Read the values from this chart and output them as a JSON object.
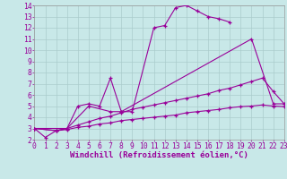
{
  "background_color": "#c8e8e8",
  "grid_color": "#aacccc",
  "line_color": "#990099",
  "xlabel": "Windchill (Refroidissement éolien,°C)",
  "xlabel_fontsize": 6.5,
  "tick_fontsize": 5.8,
  "xlim": [
    0,
    23
  ],
  "ylim": [
    2,
    14
  ],
  "xtick_vals": [
    0,
    1,
    2,
    3,
    4,
    5,
    6,
    7,
    8,
    9,
    10,
    11,
    12,
    13,
    14,
    15,
    16,
    17,
    18,
    19,
    20,
    21,
    22,
    23
  ],
  "ytick_vals": [
    2,
    3,
    4,
    5,
    6,
    7,
    8,
    9,
    10,
    11,
    12,
    13,
    14
  ],
  "series": [
    {
      "x": [
        0,
        1,
        2,
        3,
        4,
        5,
        6,
        7,
        8,
        9,
        11,
        12,
        13,
        14,
        15,
        16,
        17,
        18
      ],
      "y": [
        3,
        2.2,
        2.8,
        3.0,
        5.0,
        5.2,
        5.0,
        7.5,
        4.5,
        4.5,
        12.0,
        12.2,
        13.8,
        14.0,
        13.5,
        13.0,
        12.8,
        12.5
      ]
    },
    {
      "x": [
        0,
        3,
        5,
        7,
        8,
        20,
        22,
        23
      ],
      "y": [
        3,
        3.0,
        5.0,
        4.5,
        4.5,
        11.0,
        5.2,
        5.2
      ]
    },
    {
      "x": [
        0,
        2,
        3,
        4,
        5,
        6,
        7,
        8,
        9,
        10,
        11,
        12,
        13,
        14,
        15,
        16,
        17,
        18,
        19,
        20,
        21,
        22,
        23
      ],
      "y": [
        3,
        2.8,
        3.0,
        3.3,
        3.6,
        3.9,
        4.1,
        4.4,
        4.7,
        4.9,
        5.1,
        5.3,
        5.5,
        5.7,
        5.9,
        6.1,
        6.4,
        6.6,
        6.9,
        7.2,
        7.5,
        6.3,
        5.2
      ]
    },
    {
      "x": [
        0,
        2,
        3,
        4,
        5,
        6,
        7,
        8,
        9,
        10,
        11,
        12,
        13,
        14,
        15,
        16,
        17,
        18,
        19,
        20,
        21,
        22,
        23
      ],
      "y": [
        3,
        2.8,
        2.9,
        3.1,
        3.2,
        3.4,
        3.5,
        3.7,
        3.8,
        3.9,
        4.0,
        4.1,
        4.2,
        4.4,
        4.5,
        4.6,
        4.7,
        4.85,
        4.95,
        5.0,
        5.1,
        5.0,
        4.95
      ]
    }
  ]
}
